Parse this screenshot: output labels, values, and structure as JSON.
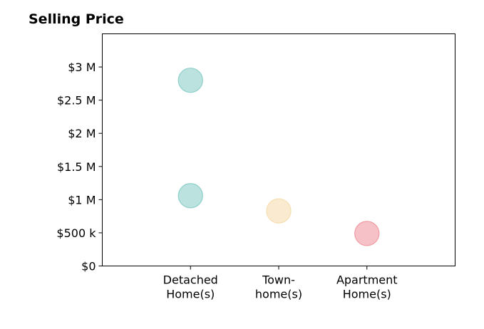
{
  "chart_data": {
    "type": "scatter",
    "title": "Selling Price",
    "xlabel": "",
    "ylabel": "",
    "categories": [
      [
        "Detached",
        "Home(s)"
      ],
      [
        "Town-",
        "home(s)"
      ],
      [
        "Apartment",
        "Home(s)"
      ]
    ],
    "xlim": [
      0,
      4
    ],
    "ylim": [
      0,
      3500000
    ],
    "yticks": [
      0,
      500000,
      1000000,
      1500000,
      2000000,
      2500000,
      3000000
    ],
    "ytick_labels": [
      "$0",
      "$500 k",
      "$1 M",
      "$1.5 M",
      "$2 M",
      "$2.5 M",
      "$3 M"
    ],
    "points": [
      {
        "category": 1,
        "value": 2800000,
        "color": "#8ecfc9"
      },
      {
        "category": 1,
        "value": 1060000,
        "color": "#8ecfc9"
      },
      {
        "category": 2,
        "value": 830000,
        "color": "#f6deb0"
      },
      {
        "category": 3,
        "value": 490000,
        "color": "#f09aa2"
      }
    ],
    "grid": false,
    "legend": "none"
  }
}
